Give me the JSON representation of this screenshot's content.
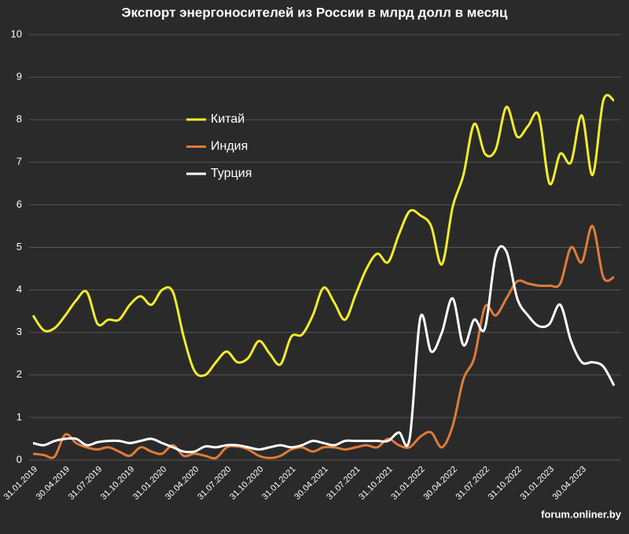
{
  "chart_data": {
    "type": "line",
    "title": "Экспорт энергоносителей из России в млрд долл в месяц",
    "categories": [
      "31.01.2019",
      null,
      null,
      "30.04.2019",
      null,
      null,
      "31.07.2019",
      null,
      null,
      "31.10.2019",
      null,
      null,
      "31.01.2020",
      null,
      null,
      "30.04.2020",
      null,
      null,
      "31.07.2020",
      null,
      null,
      "31.10.2020",
      null,
      null,
      "31.01.2021",
      null,
      null,
      "30.04.2021",
      null,
      null,
      "31.07.2021",
      null,
      null,
      "31.10.2021",
      null,
      null,
      "31.01.2022",
      null,
      null,
      "30.04.2022",
      null,
      null,
      "31.07.2022",
      null,
      null,
      "31.10.2022",
      null,
      null,
      "31.01.2023",
      null,
      null,
      "30.04.2023",
      null,
      null,
      null
    ],
    "series": [
      {
        "name": "Китай",
        "color": "#f2ec2c",
        "values": [
          3.4,
          3.05,
          3.1,
          3.4,
          3.75,
          3.95,
          3.2,
          3.3,
          3.3,
          3.65,
          3.85,
          3.65,
          4.0,
          3.95,
          2.9,
          2.1,
          2.0,
          2.3,
          2.55,
          2.3,
          2.4,
          2.8,
          2.5,
          2.25,
          2.9,
          2.95,
          3.4,
          4.05,
          3.7,
          3.3,
          3.9,
          4.5,
          4.85,
          4.65,
          5.3,
          5.85,
          5.75,
          5.5,
          4.6,
          5.95,
          6.7,
          7.9,
          7.2,
          7.3,
          8.3,
          7.6,
          7.85,
          8.1,
          6.5,
          7.2,
          7.0,
          8.1,
          6.7,
          8.45,
          8.45
        ]
      },
      {
        "name": "Индия",
        "color": "#e07b39",
        "values": [
          0.15,
          0.12,
          0.08,
          0.6,
          0.4,
          0.3,
          0.25,
          0.3,
          0.2,
          0.1,
          0.3,
          0.2,
          0.15,
          0.35,
          0.1,
          0.15,
          0.1,
          0.05,
          0.3,
          0.32,
          0.25,
          0.1,
          0.05,
          0.1,
          0.25,
          0.3,
          0.2,
          0.3,
          0.3,
          0.25,
          0.3,
          0.35,
          0.3,
          0.5,
          0.35,
          0.3,
          0.55,
          0.65,
          0.3,
          0.8,
          1.9,
          2.4,
          3.6,
          3.4,
          3.8,
          4.2,
          4.15,
          4.1,
          4.1,
          4.15,
          5.0,
          4.65,
          5.5,
          4.3,
          4.3
        ]
      },
      {
        "name": "Турция",
        "color": "#ffffff",
        "values": [
          0.4,
          0.35,
          0.45,
          0.5,
          0.5,
          0.35,
          0.42,
          0.45,
          0.45,
          0.4,
          0.45,
          0.5,
          0.4,
          0.3,
          0.2,
          0.2,
          0.32,
          0.3,
          0.35,
          0.35,
          0.3,
          0.25,
          0.3,
          0.35,
          0.3,
          0.35,
          0.45,
          0.4,
          0.35,
          0.45,
          0.45,
          0.45,
          0.45,
          0.45,
          0.65,
          0.5,
          3.35,
          2.55,
          3.0,
          3.8,
          2.7,
          3.3,
          3.1,
          4.8,
          4.9,
          3.8,
          3.4,
          3.15,
          3.2,
          3.65,
          2.8,
          2.3,
          2.3,
          2.2,
          1.75
        ]
      }
    ],
    "ylim": [
      0,
      10
    ],
    "yticks": [
      0,
      1,
      2,
      3,
      4,
      5,
      6,
      7,
      8,
      9,
      10
    ],
    "grid": true,
    "watermark": "forum.onliner.by"
  }
}
